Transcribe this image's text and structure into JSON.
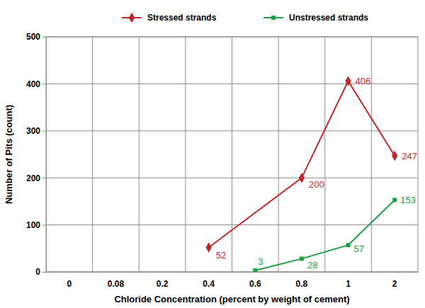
{
  "chart_data": {
    "type": "line",
    "x_label": "Chloride Concentration (percent by weight of cement)",
    "y_label": "Number of Pits (count)",
    "categories": [
      "0",
      "0.08",
      "0.2",
      "0.4",
      "0.6",
      "0.8",
      "1",
      "2"
    ],
    "series": [
      {
        "name": "Stressed strands",
        "color": "#c0262d",
        "marker": "diamond",
        "x": [
          "0.4",
          "0.8",
          "1",
          "2"
        ],
        "values": [
          52,
          200,
          406,
          247
        ]
      },
      {
        "name": "Unstressed strands",
        "color": "#1e9e45",
        "marker": "square",
        "x": [
          "0.6",
          "0.8",
          "1",
          "2"
        ],
        "values": [
          3,
          28,
          57,
          153
        ]
      }
    ],
    "ylim": [
      0,
      500
    ],
    "yticks": [
      0,
      100,
      200,
      300,
      400,
      500
    ],
    "grid": true,
    "legend": "top",
    "data_labels": true
  }
}
